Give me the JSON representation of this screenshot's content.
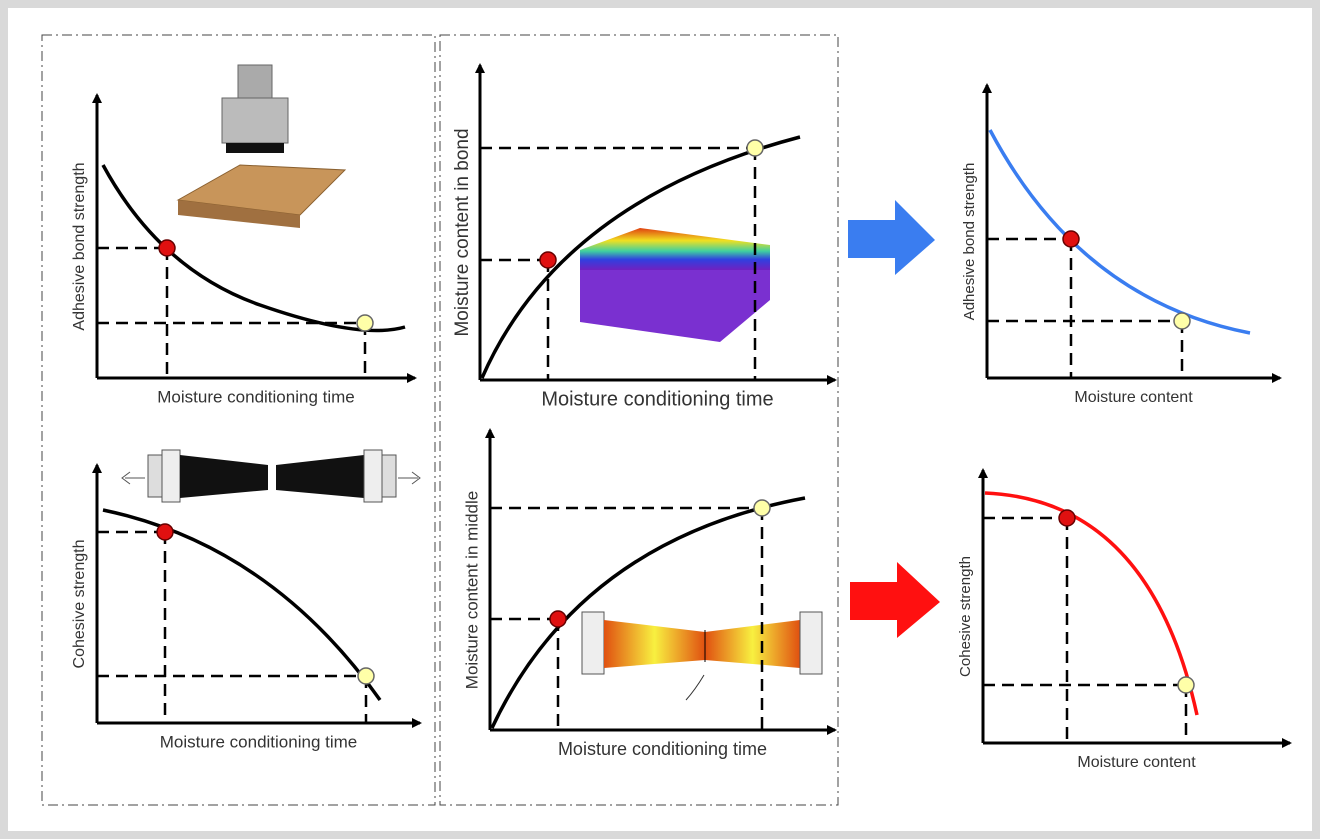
{
  "panels": [
    {
      "y_label": "Adhesive bond strength",
      "x_label": "Moisture conditioning time"
    },
    {
      "y_label": "Cohesive strength",
      "x_label": "Moisture conditioning time"
    },
    {
      "y_label": "Moisture content in bond",
      "x_label": "Moisture conditioning time"
    },
    {
      "y_label": "Moisture content in middle",
      "x_label": "Moisture conditioning time"
    },
    {
      "y_label": "Adhesive bond strength",
      "x_label": "Moisture content"
    },
    {
      "y_label": "Cohesive strength",
      "x_label": "Moisture content"
    }
  ]
}
